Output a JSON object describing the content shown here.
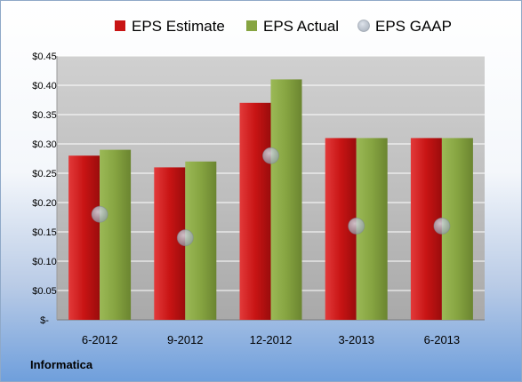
{
  "chart_data": {
    "type": "bar",
    "categories": [
      "6-2012",
      "9-2012",
      "12-2012",
      "3-2013",
      "6-2013"
    ],
    "series": [
      {
        "name": "EPS Estimate",
        "values": [
          0.28,
          0.26,
          0.37,
          0.31,
          0.31
        ],
        "color": "#c81414",
        "kind": "bar"
      },
      {
        "name": "EPS Actual",
        "values": [
          0.29,
          0.27,
          0.41,
          0.31,
          0.31
        ],
        "color": "#86a441",
        "kind": "bar"
      },
      {
        "name": "EPS GAAP",
        "values": [
          0.18,
          0.14,
          0.28,
          0.16,
          0.16
        ],
        "color": "#9aa8b8",
        "kind": "marker"
      }
    ],
    "y_ticks": [
      "$-",
      "$0.05",
      "$0.10",
      "$0.15",
      "$0.20",
      "$0.25",
      "$0.30",
      "$0.35",
      "$0.40",
      "$0.45"
    ],
    "ylim": [
      0,
      0.45
    ],
    "grid": true,
    "legend_position": "top"
  },
  "footer": {
    "company": "Informatica"
  }
}
